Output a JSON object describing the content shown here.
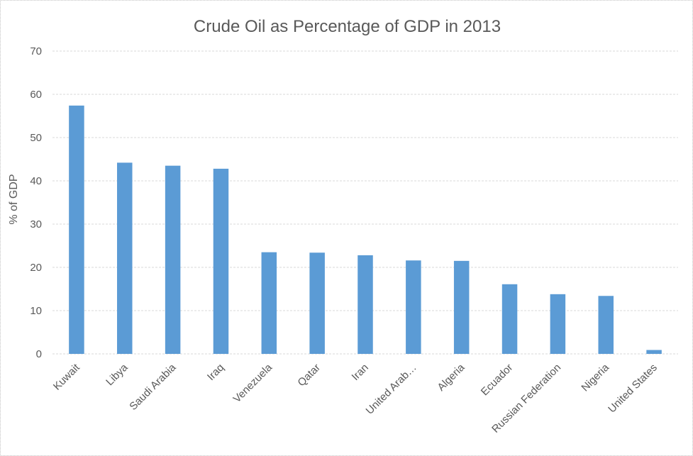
{
  "window": {
    "background": "#FFFFFF",
    "border_color": "#C3C3C3"
  },
  "chart_data": {
    "type": "bar",
    "title": "Crude Oil as Percentage of GDP in 2013",
    "xlabel": "",
    "ylabel": "% of GDP",
    "ylim": [
      0,
      70
    ],
    "yticks": [
      0,
      10,
      20,
      30,
      40,
      50,
      60,
      70
    ],
    "grid": true,
    "legend": false,
    "bar_color": "#5B9BD5",
    "grid_color": "#D9D9D9",
    "text_color": "#595959",
    "categories": [
      "Kuwait",
      "Libya",
      "Saudi Arabia",
      "Iraq",
      "Venezuela",
      "Qatar",
      "Iran",
      "United Arab…",
      "Algeria",
      "Ecuador",
      "Russian Federation",
      "Nigeria",
      "United States"
    ],
    "values": [
      57.4,
      44.2,
      43.5,
      42.8,
      23.5,
      23.4,
      22.8,
      21.6,
      21.5,
      16.1,
      13.8,
      13.4,
      0.9
    ]
  }
}
